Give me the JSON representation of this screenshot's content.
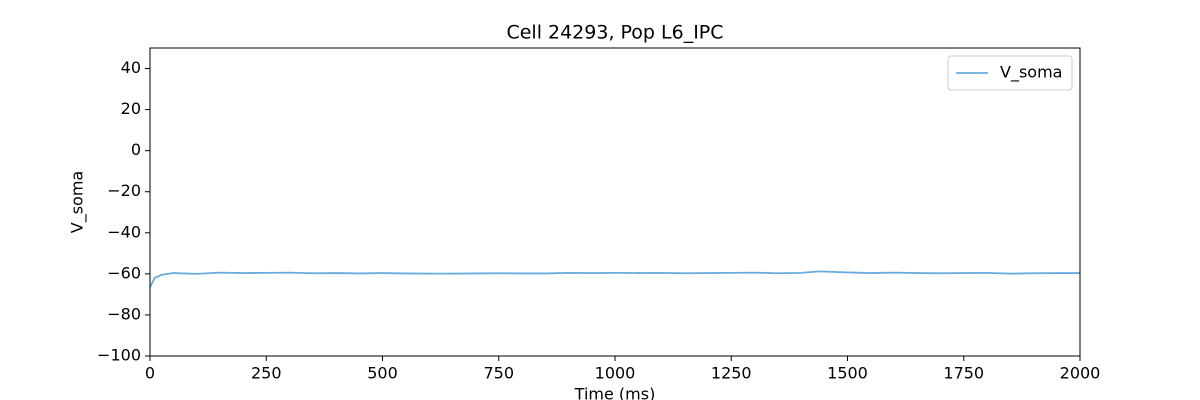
{
  "chart_data": {
    "type": "line",
    "title": "Cell 24293, Pop L6_IPC",
    "x_label": "Time (ms)",
    "y_label": "V_soma",
    "x": [
      0,
      10,
      25,
      50,
      100,
      150,
      200,
      250,
      300,
      350,
      400,
      450,
      500,
      550,
      600,
      650,
      700,
      750,
      800,
      850,
      900,
      950,
      1000,
      1050,
      1100,
      1150,
      1200,
      1250,
      1300,
      1350,
      1400,
      1440,
      1500,
      1550,
      1600,
      1650,
      1700,
      1750,
      1800,
      1850,
      1900,
      1950,
      2000
    ],
    "series": [
      {
        "name": "V_soma",
        "color": "#6aaade",
        "values": [
          -66.5,
          -62,
          -60.5,
          -59.6,
          -60.0,
          -59.4,
          -59.6,
          -59.5,
          -59.4,
          -59.7,
          -59.6,
          -59.8,
          -59.6,
          -59.8,
          -59.9,
          -59.9,
          -59.8,
          -59.7,
          -59.8,
          -59.8,
          -59.5,
          -59.6,
          -59.5,
          -59.6,
          -59.5,
          -59.7,
          -59.6,
          -59.5,
          -59.4,
          -59.7,
          -59.5,
          -58.8,
          -59.3,
          -59.6,
          -59.4,
          -59.6,
          -59.7,
          -59.6,
          -59.5,
          -59.9,
          -59.7,
          -59.6,
          -59.6
        ]
      }
    ],
    "xlim": [
      0,
      2000
    ],
    "xticks": [
      0,
      250,
      500,
      750,
      1000,
      1250,
      1500,
      1750,
      2000
    ],
    "ylim": [
      -100,
      50
    ],
    "yticks": [
      {
        "value": -100,
        "label": "−100"
      },
      {
        "value": -80,
        "label": "−80"
      },
      {
        "value": -60,
        "label": "−60"
      },
      {
        "value": -40,
        "label": "−40"
      },
      {
        "value": -20,
        "label": "−20"
      },
      0,
      20,
      40
    ],
    "legend": "upper right",
    "grid": false
  }
}
